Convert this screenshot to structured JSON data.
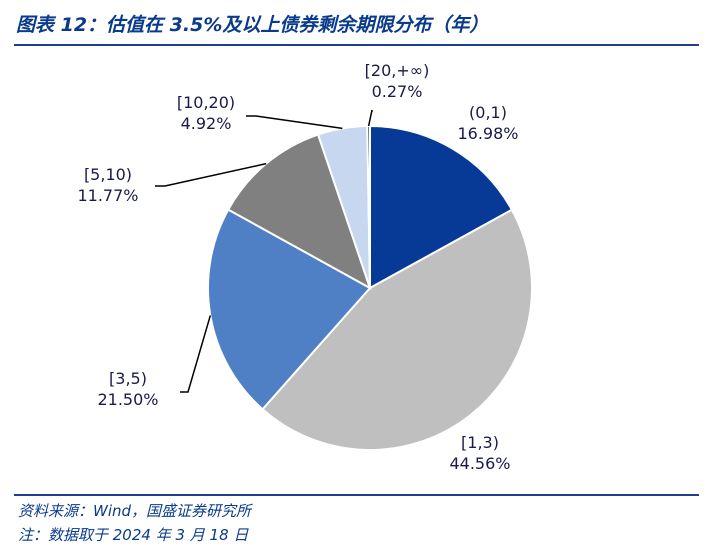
{
  "header": {
    "title": "图表 12：估值在 3.5%及以上债券剩余期限分布（年）"
  },
  "footer": {
    "source": "资料来源：Wind，国盛证券研究所",
    "note": "注：数据取于 2024 年 3 月 18 日"
  },
  "chart_data": {
    "type": "pie",
    "title": "",
    "slices": [
      {
        "label": "(0,1)",
        "value_text": "16.98%",
        "value": 16.98,
        "color": "#063a96"
      },
      {
        "label": "[1,3)",
        "value_text": "44.56%",
        "value": 44.56,
        "color": "#bfbfbf"
      },
      {
        "label": "[3,5)",
        "value_text": "21.50%",
        "value": 21.5,
        "color": "#4f7fc4"
      },
      {
        "label": "[5,10)",
        "value_text": "11.77%",
        "value": 11.77,
        "color": "#808080"
      },
      {
        "label": "[10,20)",
        "value_text": "4.92%",
        "value": 4.92,
        "color": "#c6d7ef"
      },
      {
        "label": "[20,+∞)",
        "value_text": "0.27%",
        "value": 0.27,
        "color": "#3a3a3a"
      }
    ]
  }
}
